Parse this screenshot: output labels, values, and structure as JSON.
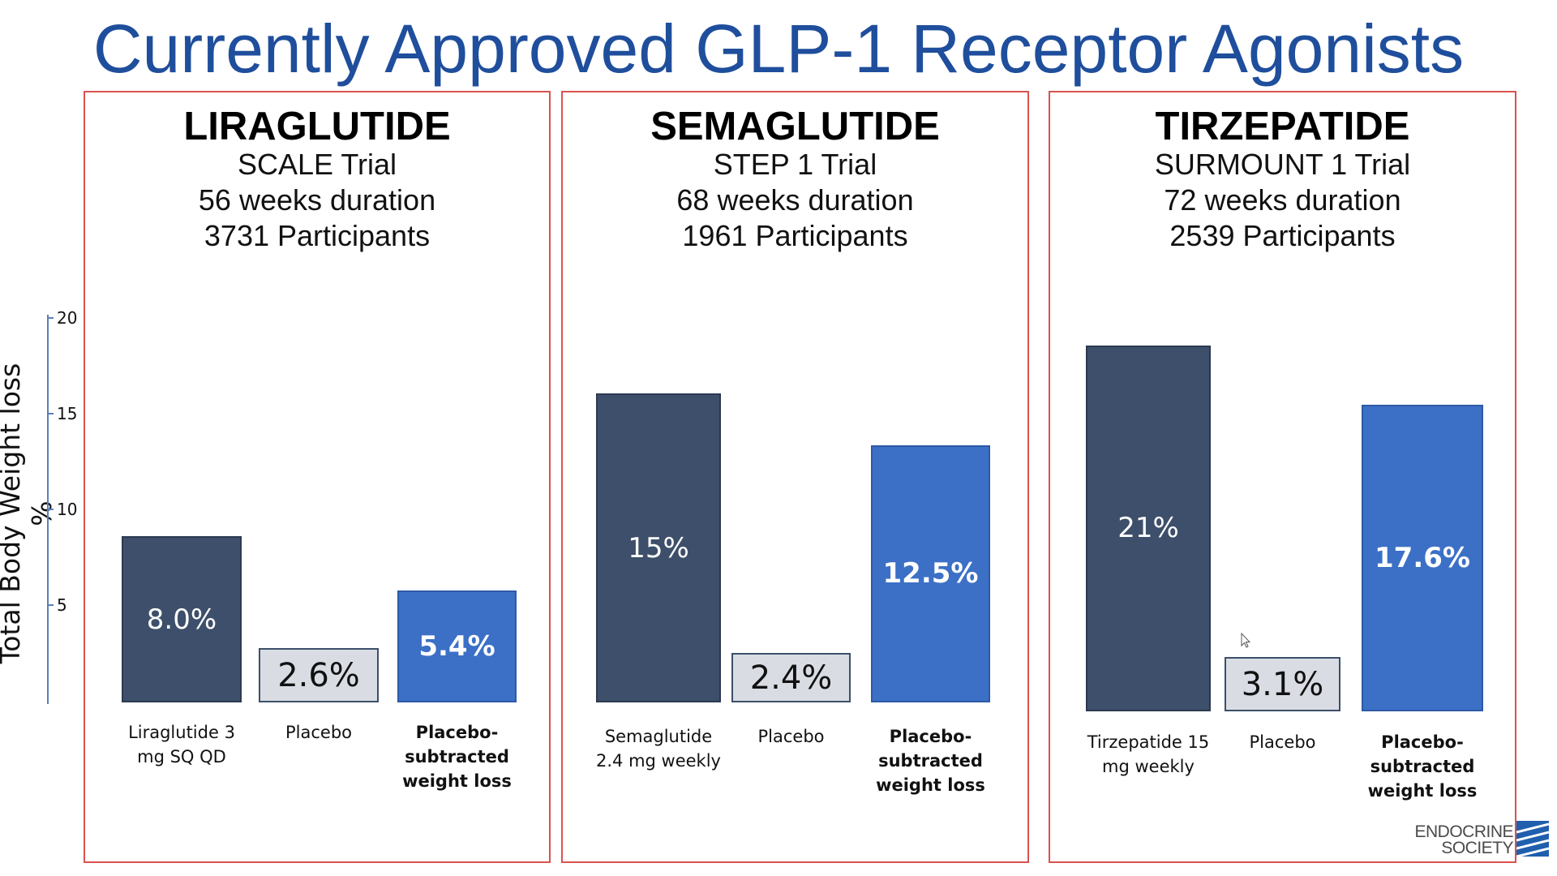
{
  "slide": {
    "title": "Currently Approved GLP-1 Receptor Agonists"
  },
  "brand": {
    "logo_line1": "ENDOCRINE",
    "logo_line2": "SOCIETY"
  },
  "colors": {
    "title": "#1f4e9c",
    "drug_bar": "#3d4f6a",
    "placebo_bar": "#d9dde3",
    "subtracted_bar": "#3c70c6",
    "panel_border": "#d9534f",
    "axis": "#5b7fb8"
  },
  "chart_data": {
    "type": "bar",
    "ylabel": "Total Body Weight loss %",
    "ylim": [
      0,
      20
    ],
    "yticks": [
      5,
      10,
      15,
      20
    ],
    "panels": [
      {
        "drug": "LIRAGLUTIDE",
        "trial": "SCALE Trial",
        "duration": "56 weeks duration",
        "participants": "3731 Participants",
        "categories": [
          "Liraglutide 3 mg SQ QD",
          "Placebo",
          "Placebo-subtracted weight loss"
        ],
        "category_lines": [
          [
            "Liraglutide 3",
            "mg SQ QD"
          ],
          [
            "Placebo"
          ],
          [
            "Placebo-",
            "subtracted",
            "weight loss"
          ]
        ],
        "values": [
          8.0,
          2.6,
          5.4
        ],
        "labels": [
          "8.0%",
          "2.6%",
          "5.4%"
        ]
      },
      {
        "drug": "SEMAGLUTIDE",
        "trial": "STEP 1 Trial",
        "duration": "68 weeks duration",
        "participants": "1961 Participants",
        "categories": [
          "Semaglutide 2.4 mg weekly",
          "Placebo",
          "Placebo-subtracted weight loss"
        ],
        "category_lines": [
          [
            "Semaglutide",
            "2.4 mg weekly"
          ],
          [
            "Placebo"
          ],
          [
            "Placebo-",
            "subtracted",
            "weight loss"
          ]
        ],
        "values": [
          15,
          2.4,
          12.5
        ],
        "labels": [
          "15%",
          "2.4%",
          "12.5%"
        ]
      },
      {
        "drug": "TIRZEPATIDE",
        "trial": "SURMOUNT 1 Trial",
        "duration": "72 weeks duration",
        "participants": "2539 Participants",
        "categories": [
          "Tirzepatide 15 mg weekly",
          "Placebo",
          "Placebo-subtracted weight loss"
        ],
        "category_lines": [
          [
            "Tirzepatide 15",
            "mg weekly"
          ],
          [
            "Placebo"
          ],
          [
            "Placebo-",
            "subtracted",
            "weight loss"
          ]
        ],
        "values": [
          21,
          3.1,
          17.6
        ],
        "labels": [
          "21%",
          "3.1%",
          "17.6%"
        ]
      }
    ]
  }
}
